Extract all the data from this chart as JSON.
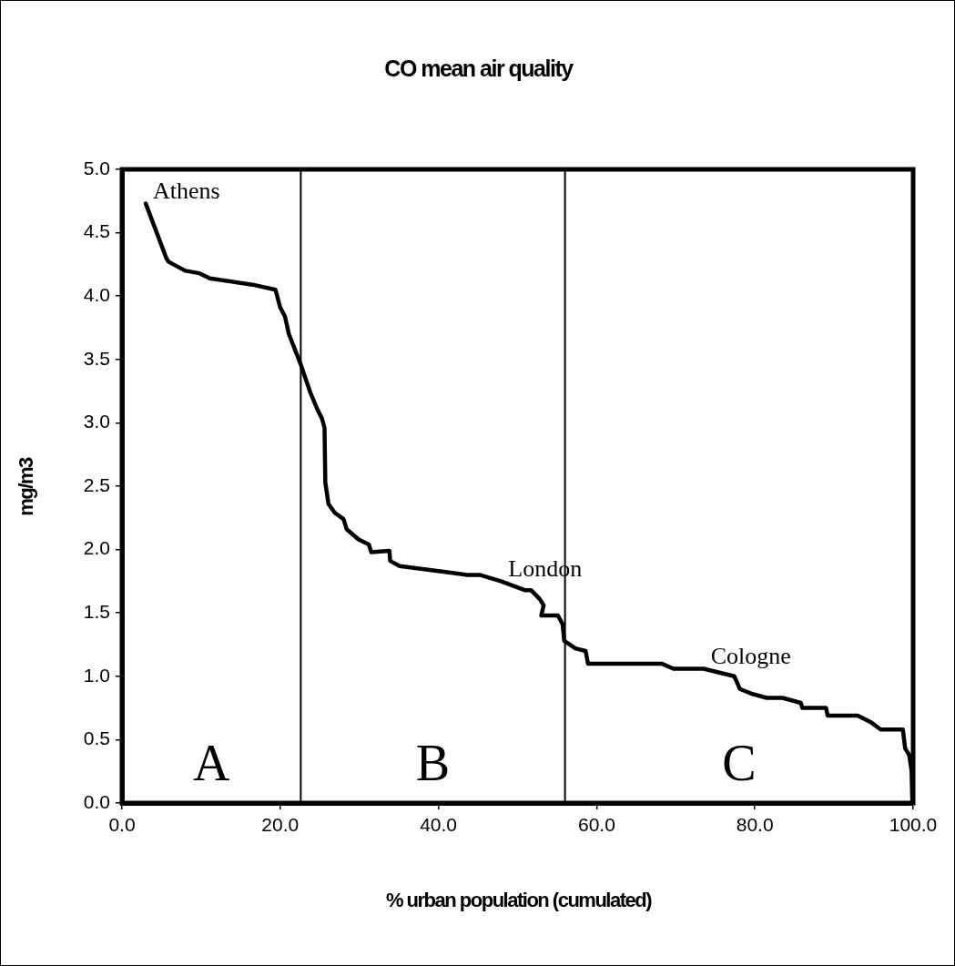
{
  "chart_data": {
    "type": "line",
    "title": "CO mean air quality",
    "xlabel": "% urban population (cumulated)",
    "ylabel": "mg/m3",
    "x": [
      3.0,
      5.6,
      5.9,
      8.0,
      9.8,
      11.1,
      16.5,
      19.4,
      19.7,
      20.0,
      20.6,
      21.1,
      22.6,
      23.8,
      24.6,
      25.3,
      25.6,
      25.7,
      26.1,
      26.9,
      28.0,
      28.4,
      29.9,
      31.2,
      31.5,
      33.8,
      33.9,
      35.1,
      40.0,
      43.6,
      45.2,
      47.9,
      50.9,
      51.7,
      52.8,
      53.3,
      53.0,
      55.1,
      55.7,
      55.9,
      57.3,
      58.6,
      58.9,
      68.2,
      69.7,
      73.5,
      77.4,
      78.1,
      79.7,
      81.5,
      83.5,
      85.8,
      86.0,
      89.0,
      89.2,
      93.0,
      94.6,
      95.9,
      98.7,
      99.0,
      99.5,
      99.8,
      99.9
    ],
    "series": [
      {
        "color": "#000000",
        "values": [
          4.73,
          4.3,
          4.27,
          4.2,
          4.18,
          4.14,
          4.09,
          4.05,
          3.98,
          3.91,
          3.84,
          3.7,
          3.46,
          3.24,
          3.12,
          3.03,
          2.96,
          2.53,
          2.36,
          2.29,
          2.24,
          2.16,
          2.08,
          2.04,
          1.98,
          1.99,
          1.91,
          1.87,
          1.83,
          1.8,
          1.8,
          1.75,
          1.68,
          1.68,
          1.61,
          1.56,
          1.48,
          1.48,
          1.41,
          1.28,
          1.22,
          1.2,
          1.1,
          1.1,
          1.06,
          1.06,
          1.0,
          0.9,
          0.86,
          0.83,
          0.83,
          0.79,
          0.75,
          0.75,
          0.69,
          0.69,
          0.64,
          0.58,
          0.58,
          0.43,
          0.38,
          0.26,
          0.02
        ]
      }
    ],
    "xlim": [
      0,
      100
    ],
    "xticks": [
      {
        "value": 0,
        "label": "0.0"
      },
      {
        "value": 20,
        "label": "20.0"
      },
      {
        "value": 40,
        "label": "40.0"
      },
      {
        "value": 60,
        "label": "60.0"
      },
      {
        "value": 80,
        "label": "80.0"
      },
      {
        "value": 100,
        "label": "100.0"
      }
    ],
    "ylim": [
      0,
      5
    ],
    "yticks": [
      {
        "value": 0,
        "label": "0.0"
      },
      {
        "value": 0.5,
        "label": "0.5"
      },
      {
        "value": 1,
        "label": "1.0"
      },
      {
        "value": 1.5,
        "label": "1.5"
      },
      {
        "value": 2,
        "label": "2.0"
      },
      {
        "value": 2.5,
        "label": "2.5"
      },
      {
        "value": 3,
        "label": "3.0"
      },
      {
        "value": 3.5,
        "label": "3.5"
      },
      {
        "value": 4,
        "label": "4.0"
      },
      {
        "value": 4.5,
        "label": "4.5"
      },
      {
        "value": 5,
        "label": "5.0"
      }
    ],
    "ref_lines": [
      {
        "axis": "x",
        "value": 22.6,
        "color": "#000000"
      },
      {
        "axis": "x",
        "value": 56.0,
        "color": "#000000"
      }
    ],
    "annotations": [
      {
        "text": "Athens",
        "x": 3.0,
        "y": 4.73
      },
      {
        "text": "London",
        "x": 47.9,
        "y": 1.75
      },
      {
        "text": "Cologne",
        "x": 73.5,
        "y": 1.06
      },
      "A",
      "B",
      "C"
    ],
    "marker": "none",
    "line_style": "solid"
  }
}
